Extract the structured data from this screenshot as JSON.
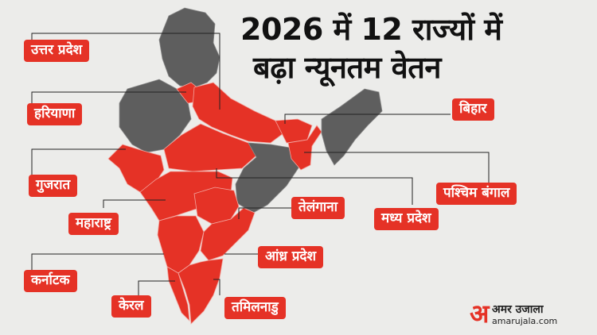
{
  "title": {
    "line1": "2026 में 12 राज्यों में",
    "line2": "बढ़ा न्यूनतम वेतन"
  },
  "states": [
    {
      "id": "uttar-pradesh",
      "label": "उत्तर प्रदेश"
    },
    {
      "id": "haryana",
      "label": "हरियाणा"
    },
    {
      "id": "gujarat",
      "label": "गुजरात"
    },
    {
      "id": "maharashtra",
      "label": "महाराष्ट्र"
    },
    {
      "id": "karnataka",
      "label": "कर्नाटक"
    },
    {
      "id": "kerala",
      "label": "केरल"
    },
    {
      "id": "tamil-nadu",
      "label": "तमिलनाडु"
    },
    {
      "id": "andhra-pradesh",
      "label": "आंध्र प्रदेश"
    },
    {
      "id": "telangana",
      "label": "तेलंगाना"
    },
    {
      "id": "madhya-pradesh",
      "label": "मध्य प्रदेश"
    },
    {
      "id": "west-bengal",
      "label": "पश्चिम बंगाल"
    },
    {
      "id": "bihar",
      "label": "बिहार"
    }
  ],
  "colors": {
    "highlight": "#e53226",
    "other": "#5e5e5e",
    "background": "#ececea"
  },
  "logo": {
    "glyph": "अ",
    "name": "अमर उजाला",
    "url": "amarujala.com"
  }
}
